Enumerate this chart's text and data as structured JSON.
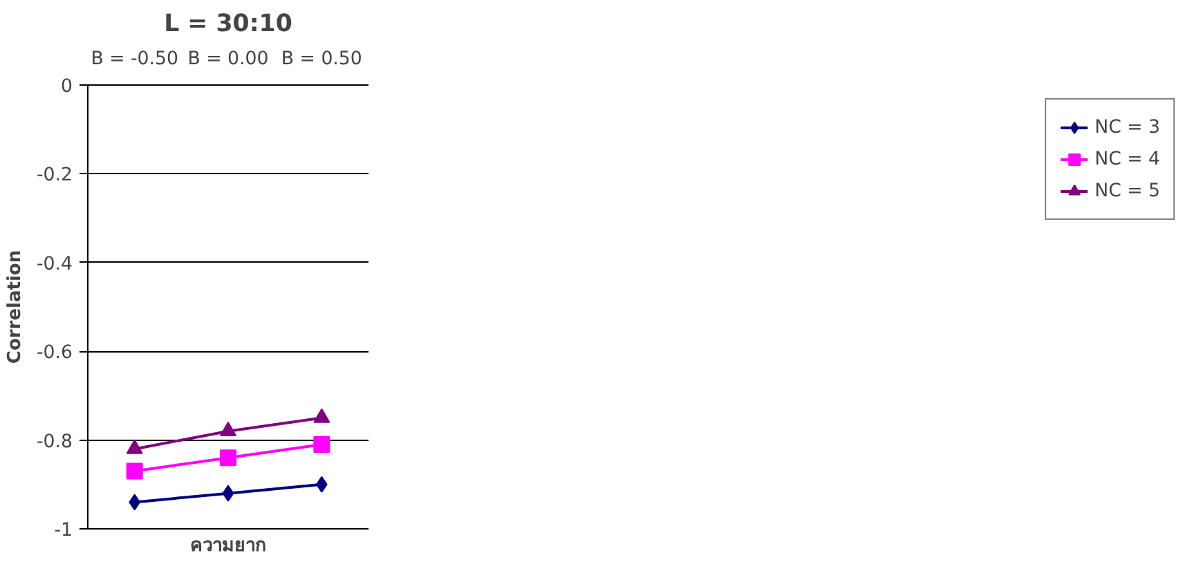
{
  "chart_data": {
    "type": "line",
    "title": "L = 30:10",
    "xlabel": "ความยาก",
    "ylabel": "Correlation",
    "categories": [
      "B = -0.50",
      "B = 0.00",
      "B = 0.50"
    ],
    "ylim": [
      -1,
      0
    ],
    "yticks": [
      -1,
      -0.8,
      -0.6,
      -0.4,
      -0.2,
      0
    ],
    "grid": "y",
    "legend": "right",
    "series": [
      {
        "name": "NC = 3",
        "color": "#000080",
        "marker": "diamond",
        "values": [
          -0.94,
          -0.92,
          -0.9
        ]
      },
      {
        "name": "NC = 4",
        "color": "#ff00ff",
        "marker": "square",
        "values": [
          -0.87,
          -0.84,
          -0.81
        ]
      },
      {
        "name": "NC = 5",
        "color": "#800080",
        "marker": "triangle",
        "values": [
          -0.82,
          -0.78,
          -0.75
        ]
      }
    ]
  }
}
